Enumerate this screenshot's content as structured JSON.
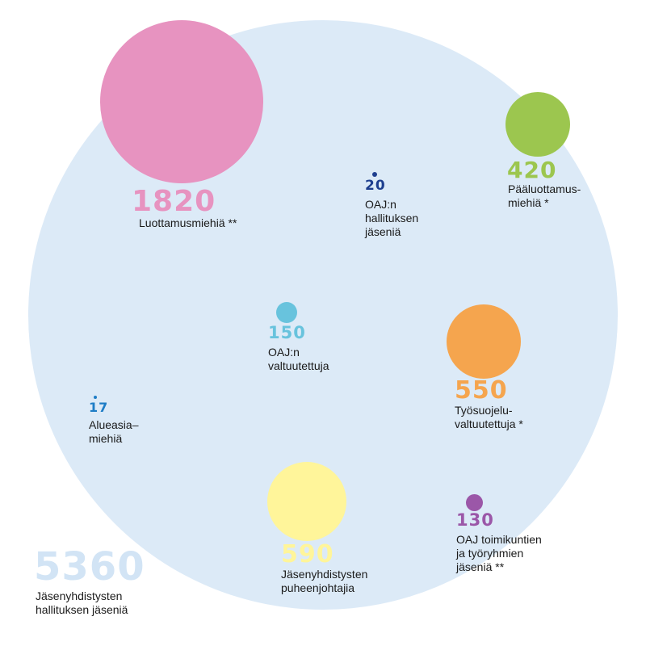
{
  "colors": {
    "background_circle": "#dceaf7",
    "pink": "#e793c0",
    "green": "#9cc64f",
    "orange": "#f5a54e",
    "yellow": "#fff59a",
    "light_blue": "#68c3dd",
    "dark_blue": "#1e3f8f",
    "blue": "#1e7dc6",
    "purple": "#9b57a8",
    "label_text": "#1a1a1a"
  },
  "total": {
    "value": "5360",
    "label": "Jäsenyhdistysten\nhallituksen jäseniä"
  },
  "groups": [
    {
      "id": "luottamusmiehet",
      "value": "1820",
      "count": 1820,
      "label": "Luottamusmiehiä **",
      "color": "#e793c0"
    },
    {
      "id": "oaj-hallitus",
      "value": "20",
      "count": 20,
      "label": "OAJ:n\nhallituksen\njäseniä",
      "color": "#1e3f8f"
    },
    {
      "id": "paaluottamusmiehet",
      "value": "420",
      "count": 420,
      "label": "Pääluottamus-\nmiehiä *",
      "color": "#9cc64f"
    },
    {
      "id": "oaj-valtuutetut",
      "value": "150",
      "count": 150,
      "label": "OAJ:n\nvaltuutettuja",
      "color": "#68c3dd"
    },
    {
      "id": "tyosuojeluvaltuutetut",
      "value": "550",
      "count": 550,
      "label": "Työsuojelu-\nvaltuutettuja *",
      "color": "#f5a54e"
    },
    {
      "id": "alueasiamiehet",
      "value": "17",
      "count": 17,
      "label": "Alueasia–\nmiehiä",
      "color": "#1e7dc6"
    },
    {
      "id": "puheenjohtajat",
      "value": "590",
      "count": 590,
      "label": "Jäsenyhdistysten\npuheenjohtajia",
      "color": "#fff59a"
    },
    {
      "id": "toimikunnat",
      "value": "130",
      "count": 130,
      "label": "OAJ toimikuntien\nja työryhmien\njäseniä **",
      "color": "#9b57a8"
    }
  ]
}
